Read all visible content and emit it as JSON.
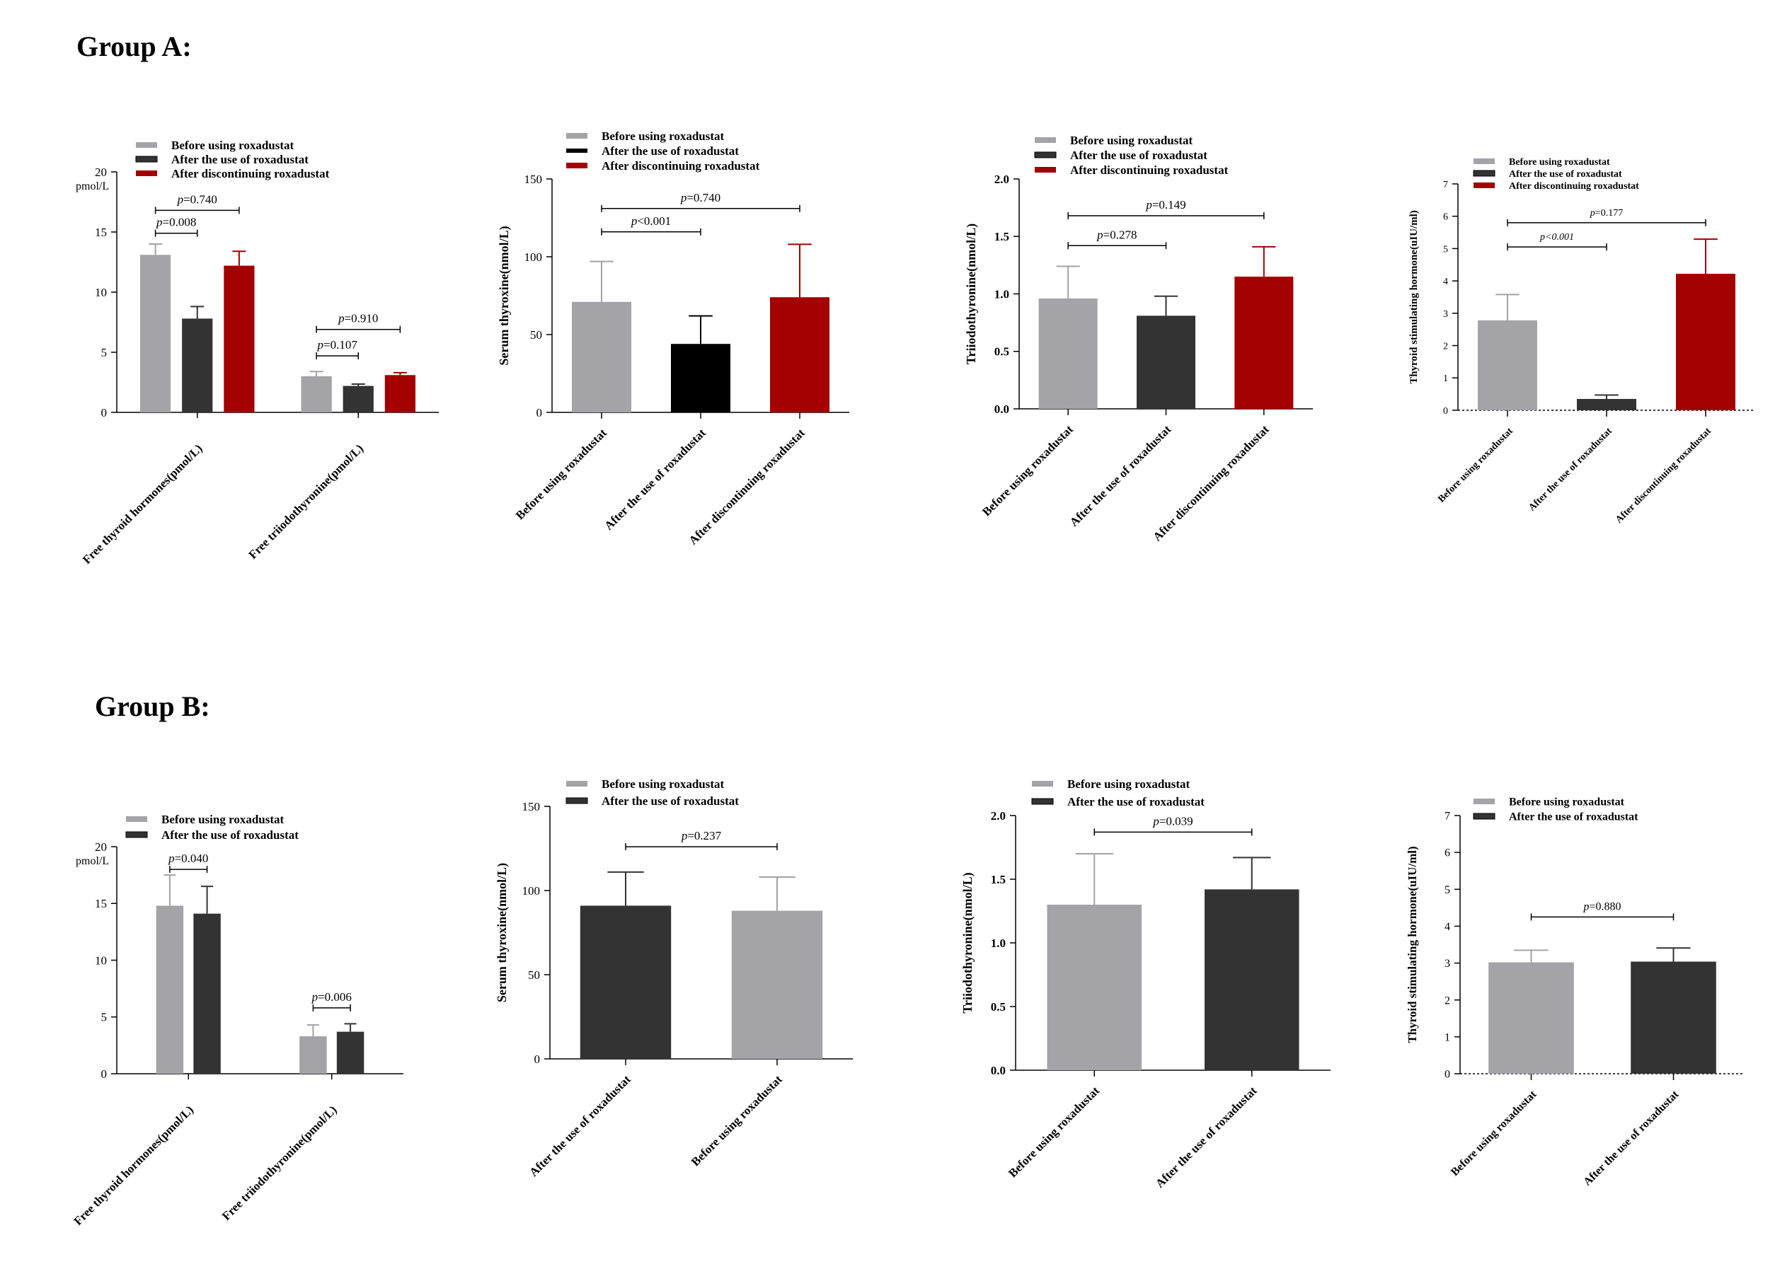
{
  "groups": [
    {
      "title": "Group A"
    },
    {
      "title": "Group B"
    }
  ],
  "colors": {
    "before": "#a3a3a8",
    "after": "#333333",
    "after_black": "#000000",
    "discontinue": "#a30000"
  },
  "chart_data": [
    {
      "type": "bar",
      "group": "Group A",
      "title": "",
      "xlabel": "",
      "ylabel": "",
      "yunit": "pmol/L",
      "ylim": [
        0,
        20
      ],
      "yticks": [
        0,
        5,
        10,
        15,
        20
      ],
      "categories": [
        "Free thyroid hormones(pmol/L)",
        "Free triiodothyronine(pmol/L)"
      ],
      "series": [
        {
          "name": "Before using roxadustat",
          "color": "#a3a3a8",
          "values": [
            13.1,
            3.0
          ],
          "errors": [
            0.9,
            0.4
          ]
        },
        {
          "name": "After the use of roxadustat",
          "color": "#333333",
          "values": [
            7.8,
            2.2
          ],
          "errors": [
            1.0,
            0.15
          ]
        },
        {
          "name": "After discontinuing roxadustat",
          "color": "#a30000",
          "values": [
            12.2,
            3.1
          ],
          "errors": [
            1.2,
            0.2
          ]
        }
      ],
      "legend": "top-left",
      "annotations": [
        {
          "label": "p=0.740",
          "italic_p": true,
          "cat": 0,
          "from": 0,
          "to": 2,
          "y": 16.8
        },
        {
          "label": "p=0.008",
          "italic_p": true,
          "cat": 0,
          "from": 0,
          "to": 1,
          "y": 14.9
        },
        {
          "label": "p=0.910",
          "italic_p": true,
          "cat": 1,
          "from": 0,
          "to": 2,
          "y": 6.9
        },
        {
          "label": "p=0.107",
          "italic_p": true,
          "cat": 1,
          "from": 0,
          "to": 1,
          "y": 4.7
        }
      ]
    },
    {
      "type": "bar",
      "group": "Group A",
      "title": "",
      "xlabel": "",
      "ylabel": "Serum thyroxine(nmol/L)",
      "ylim": [
        0,
        150
      ],
      "yticks": [
        0,
        50,
        100,
        150
      ],
      "categories": [
        "Before using roxadustat",
        "After the use of roxadustat",
        "After discontinuing roxadustat"
      ],
      "values": [
        71,
        44,
        74
      ],
      "errors": [
        26,
        18,
        34
      ],
      "colors": [
        "#a3a3a8",
        "#000000",
        "#a30000"
      ],
      "series": [
        {
          "name": "Before using roxadustat",
          "color": "#a3a3a8"
        },
        {
          "name": "After the use of roxadustat",
          "color": "#000000"
        },
        {
          "name": "After discontinuing roxadustat",
          "color": "#a30000"
        }
      ],
      "legend": "top-left",
      "annotations": [
        {
          "label": "p=0.740",
          "italic_p": true,
          "from": 0,
          "to": 2,
          "y": 131
        },
        {
          "label": "p<0.001",
          "italic_p": true,
          "from": 0,
          "to": 1,
          "y": 116
        }
      ]
    },
    {
      "type": "bar",
      "group": "Group A",
      "title": "",
      "xlabel": "",
      "ylabel": "Triiodothyronine(nmol/L)",
      "ylim": [
        0,
        2.0
      ],
      "yticks": [
        0.0,
        0.5,
        1.0,
        1.5,
        2.0
      ],
      "tickdec": 1,
      "categories": [
        "Before using roxadustat",
        "After the use of roxadustat",
        "After discontinuing roxadustat"
      ],
      "values": [
        0.96,
        0.81,
        1.15
      ],
      "errors": [
        0.28,
        0.17,
        0.26
      ],
      "colors": [
        "#a3a3a8",
        "#333333",
        "#a30000"
      ],
      "series": [
        {
          "name": "Before using roxadustat",
          "color": "#a3a3a8"
        },
        {
          "name": "After the use of roxadustat",
          "color": "#333333"
        },
        {
          "name": "After discontinuing roxadustat",
          "color": "#a30000"
        }
      ],
      "legend": "top-left",
      "annotations": [
        {
          "label": "p=0.149",
          "italic_p": true,
          "from": 0,
          "to": 2,
          "y": 1.68
        },
        {
          "label": "p=0.278",
          "italic_p": true,
          "from": 0,
          "to": 1,
          "y": 1.42
        }
      ]
    },
    {
      "type": "bar",
      "group": "Group A",
      "title": "",
      "xlabel": "",
      "ylabel": "Thyroid stimulating hormone(uIU/ml)",
      "ylim": [
        0,
        7
      ],
      "yticks": [
        0,
        1,
        2,
        3,
        4,
        5,
        6,
        7
      ],
      "categories": [
        "Before using roxadustat",
        "After the use of roxadustat",
        "After discontinuing roxadustat"
      ],
      "values": [
        2.78,
        0.35,
        4.22
      ],
      "errors": [
        0.8,
        0.12,
        1.07
      ],
      "colors": [
        "#a3a3a8",
        "#333333",
        "#a30000"
      ],
      "series": [
        {
          "name": "Before using roxadustat",
          "color": "#a3a3a8"
        },
        {
          "name": "After the use of roxadustat",
          "color": "#333333"
        },
        {
          "name": "After discontinuing roxadustat",
          "color": "#a30000"
        }
      ],
      "legend": "top-left",
      "annotations": [
        {
          "label": "p=0.177",
          "italic_p": true,
          "from": 0,
          "to": 2,
          "y": 5.8
        },
        {
          "label": "p<0.001",
          "italic_p": true,
          "italic_all": true,
          "from": 0,
          "to": 1,
          "y": 5.05
        }
      ]
    },
    {
      "type": "bar",
      "group": "Group B",
      "title": "",
      "xlabel": "",
      "ylabel": "",
      "yunit": "pmol/L",
      "ylim": [
        0,
        20
      ],
      "yticks": [
        0,
        5,
        10,
        15,
        20
      ],
      "categories": [
        "Free thyroid hormones(pmol/L)",
        "Free triiodothyronine(pmol/L)"
      ],
      "series": [
        {
          "name": "Before using roxadustat",
          "color": "#a3a3a8",
          "values": [
            14.8,
            3.3
          ],
          "errors": [
            2.7,
            1.0
          ]
        },
        {
          "name": "After the use of roxadustat",
          "color": "#333333",
          "values": [
            14.1,
            3.7
          ],
          "errors": [
            2.4,
            0.7
          ]
        }
      ],
      "legend": "top-left",
      "annotations": [
        {
          "label": "p=0.040",
          "italic_p": true,
          "cat": 0,
          "from": 0,
          "to": 1,
          "y": 18.0
        },
        {
          "label": "p=0.006",
          "italic_p": true,
          "cat": 1,
          "from": 0,
          "to": 1,
          "y": 5.8
        }
      ]
    },
    {
      "type": "bar",
      "group": "Group B",
      "title": "",
      "xlabel": "",
      "ylabel": "Serum thyroxine(nmol/L)",
      "ylim": [
        0,
        150
      ],
      "yticks": [
        0,
        50,
        100,
        150
      ],
      "categories": [
        "After the use of roxadustat",
        "Before using roxadustat"
      ],
      "values": [
        91,
        88
      ],
      "errors": [
        20,
        20
      ],
      "colors": [
        "#333333",
        "#a3a3a8"
      ],
      "series": [
        {
          "name": "Before using roxadustat",
          "color": "#a3a3a8"
        },
        {
          "name": "After the use of roxadustat",
          "color": "#333333"
        }
      ],
      "legend": "top-left",
      "annotations": [
        {
          "label": "p=0.237",
          "italic_p": true,
          "from": 0,
          "to": 1,
          "y": 126
        }
      ]
    },
    {
      "type": "bar",
      "group": "Group B",
      "title": "",
      "xlabel": "",
      "ylabel": "Triiodothyronine(nmol/L)",
      "ylim": [
        0,
        2.0
      ],
      "yticks": [
        0.0,
        0.5,
        1.0,
        1.5,
        2.0
      ],
      "tickdec": 1,
      "categories": [
        "Before using roxadustat",
        "After the use of roxadustat"
      ],
      "values": [
        1.3,
        1.42
      ],
      "errors": [
        0.4,
        0.25
      ],
      "colors": [
        "#a3a3a8",
        "#333333"
      ],
      "series": [
        {
          "name": "Before using roxadustat",
          "color": "#a3a3a8"
        },
        {
          "name": "After the use of roxadustat",
          "color": "#333333"
        }
      ],
      "legend": "top-left",
      "annotations": [
        {
          "label": "p=0.039",
          "italic_p": true,
          "from": 0,
          "to": 1,
          "y": 1.87
        }
      ]
    },
    {
      "type": "bar",
      "group": "Group B",
      "title": "",
      "xlabel": "",
      "ylabel": "Thyroid stimulating hormone(uIU/ml)",
      "ylim": [
        0,
        7
      ],
      "yticks": [
        0,
        1,
        2,
        3,
        4,
        5,
        6,
        7
      ],
      "categories": [
        "Before using roxadustat",
        "After the use of roxadustat"
      ],
      "values": [
        3.02,
        3.04
      ],
      "errors": [
        0.33,
        0.37
      ],
      "colors": [
        "#a3a3a8",
        "#333333"
      ],
      "series": [
        {
          "name": "Before using roxadustat",
          "color": "#a3a3a8"
        },
        {
          "name": "After the use of roxadustat",
          "color": "#333333"
        }
      ],
      "legend": "top-left",
      "annotations": [
        {
          "label": "p=0.880",
          "italic_p": true,
          "from": 0,
          "to": 1,
          "y": 4.25
        }
      ]
    }
  ]
}
